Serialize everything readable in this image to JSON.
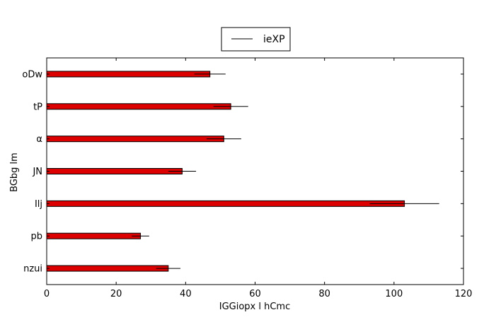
{
  "chart_data": {
    "type": "bar",
    "orientation": "horizontal",
    "categories": [
      "oDw",
      "tP",
      "α",
      "JN",
      "Ilj",
      "pb",
      "nzui"
    ],
    "series": [
      {
        "name": "ieXP",
        "values": [
          47,
          53,
          51,
          39,
          103,
          27,
          35
        ],
        "errors": [
          4.5,
          5,
          5,
          4,
          10,
          2.5,
          3.5
        ],
        "color": "#dd0000"
      }
    ],
    "xlabel": "IGGiopx l hCmc",
    "ylabel": "BGbg lm",
    "xlim": [
      0,
      120
    ],
    "xticks": [
      "0",
      "20",
      "40",
      "60",
      "80",
      "100",
      "120"
    ],
    "grid": false,
    "legend_position": "top-center"
  }
}
